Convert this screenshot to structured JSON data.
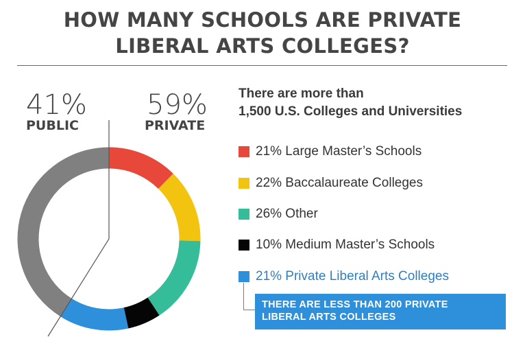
{
  "title_lines": [
    "HOW MANY SCHOOLS ARE PRIVATE",
    "LIBERAL ARTS COLLEGES?"
  ],
  "public": {
    "percent_label": "41%",
    "label": "PUBLIC"
  },
  "private": {
    "percent_label": "59%",
    "label": "PRIVATE"
  },
  "intro_lines": [
    "There are more than",
    "1,500 U.S. Colleges and Universities"
  ],
  "callout_lines": [
    "THERE ARE LESS THAN 200 PRIVATE",
    "LIBERAL ARTS COLLEGES"
  ],
  "chart_data": {
    "type": "pie",
    "variant": "donut",
    "title": "HOW MANY SCHOOLS ARE PRIVATE LIBERAL ARTS COLLEGES?",
    "top_level": [
      {
        "name": "Public",
        "value": 41,
        "color": "#808080"
      },
      {
        "name": "Private",
        "value": 59
      }
    ],
    "private_breakdown": [
      {
        "label": "21% Large Master’s Schools",
        "value": 21,
        "color": "#E8483A"
      },
      {
        "label": "22% Baccalaureate Colleges",
        "value": 22,
        "color": "#F2C410"
      },
      {
        "label": "26% Other",
        "value": 26,
        "color": "#34BD98"
      },
      {
        "label": "10% Medium Master’s Schools",
        "value": 10,
        "color": "#050505"
      },
      {
        "label": "21% Private Liberal Arts Colleges",
        "value": 21,
        "color": "#2E8FDB"
      }
    ]
  }
}
